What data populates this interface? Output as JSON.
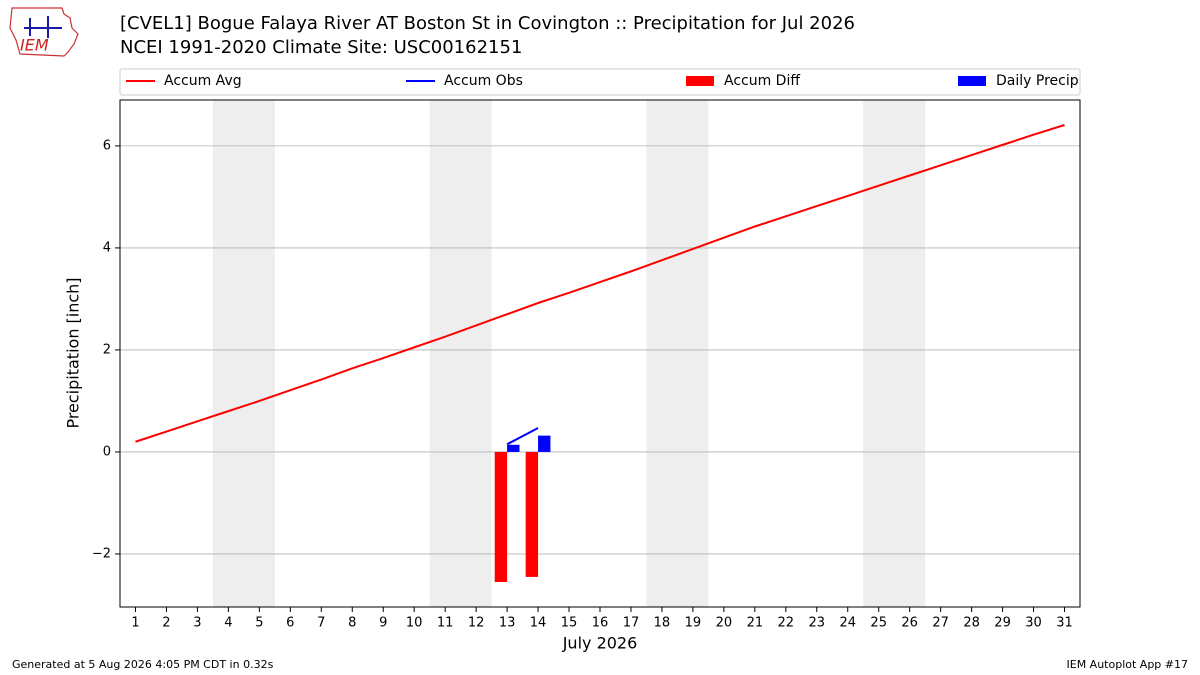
{
  "logo": "IEM",
  "footer": {
    "left": "Generated at 5 Aug 2026 4:05 PM CDT in 0.32s",
    "right": "IEM Autoplot App #17"
  },
  "chart_data": {
    "type": "combo",
    "title": "[CVEL1] Bogue Falaya River  AT Boston St in Covington :: Precipitation for Jul 2026",
    "subtitle": "NCEI 1991-2020 Climate Site: USC00162151",
    "x_label": "July 2026",
    "y_label": "Precipitation [inch]",
    "x": [
      1,
      2,
      3,
      4,
      5,
      6,
      7,
      8,
      9,
      10,
      11,
      12,
      13,
      14,
      15,
      16,
      17,
      18,
      19,
      20,
      21,
      22,
      23,
      24,
      25,
      26,
      27,
      28,
      29,
      30,
      31
    ],
    "xlim": [
      0.5,
      31.5
    ],
    "xticks": [
      1,
      2,
      3,
      4,
      5,
      6,
      7,
      8,
      9,
      10,
      11,
      12,
      13,
      14,
      15,
      16,
      17,
      18,
      19,
      20,
      21,
      22,
      23,
      24,
      25,
      26,
      27,
      28,
      29,
      30,
      31
    ],
    "ylim": [
      -3.04,
      6.9
    ],
    "yticks": [
      {
        "value": -2,
        "label": "−2"
      },
      0,
      2,
      4,
      6
    ],
    "grid": true,
    "shaded_spans": [
      [
        3.5,
        5.5
      ],
      [
        10.5,
        12.5
      ],
      [
        17.5,
        19.5
      ],
      [
        24.5,
        26.5
      ]
    ],
    "shade_color": "#eeeeee",
    "series": [
      {
        "name": "Accum Avg",
        "type": "line",
        "color": "#ff0000",
        "values": [
          0.2,
          0.4,
          0.6,
          0.8,
          1.0,
          1.21,
          1.42,
          1.64,
          1.84,
          2.05,
          2.26,
          2.48,
          2.7,
          2.92,
          3.12,
          3.33,
          3.54,
          3.76,
          3.98,
          4.2,
          4.42,
          4.62,
          4.82,
          5.02,
          5.22,
          5.42,
          5.62,
          5.82,
          6.02,
          6.22,
          6.41
        ]
      },
      {
        "name": "Accum Obs",
        "type": "line",
        "color": "#0000ff",
        "values": [
          null,
          null,
          null,
          null,
          null,
          null,
          null,
          null,
          null,
          null,
          null,
          null,
          0.15,
          0.47,
          null,
          null,
          null,
          null,
          null,
          null,
          null,
          null,
          null,
          null,
          null,
          null,
          null,
          null,
          null,
          null,
          null
        ]
      },
      {
        "name": "Accum Diff",
        "type": "bar",
        "color": "#ff0000",
        "values": [
          null,
          null,
          null,
          null,
          null,
          null,
          null,
          null,
          null,
          null,
          null,
          null,
          -2.55,
          -2.45,
          null,
          null,
          null,
          null,
          null,
          null,
          null,
          null,
          null,
          null,
          null,
          null,
          null,
          null,
          null,
          null,
          null
        ]
      },
      {
        "name": "Daily Precip",
        "type": "bar",
        "color": "#0000ff",
        "values": [
          null,
          null,
          null,
          null,
          null,
          null,
          null,
          null,
          null,
          null,
          null,
          null,
          0.14,
          0.32,
          null,
          null,
          null,
          null,
          null,
          null,
          null,
          null,
          null,
          null,
          null,
          null,
          null,
          null,
          null,
          null,
          null
        ]
      }
    ]
  }
}
